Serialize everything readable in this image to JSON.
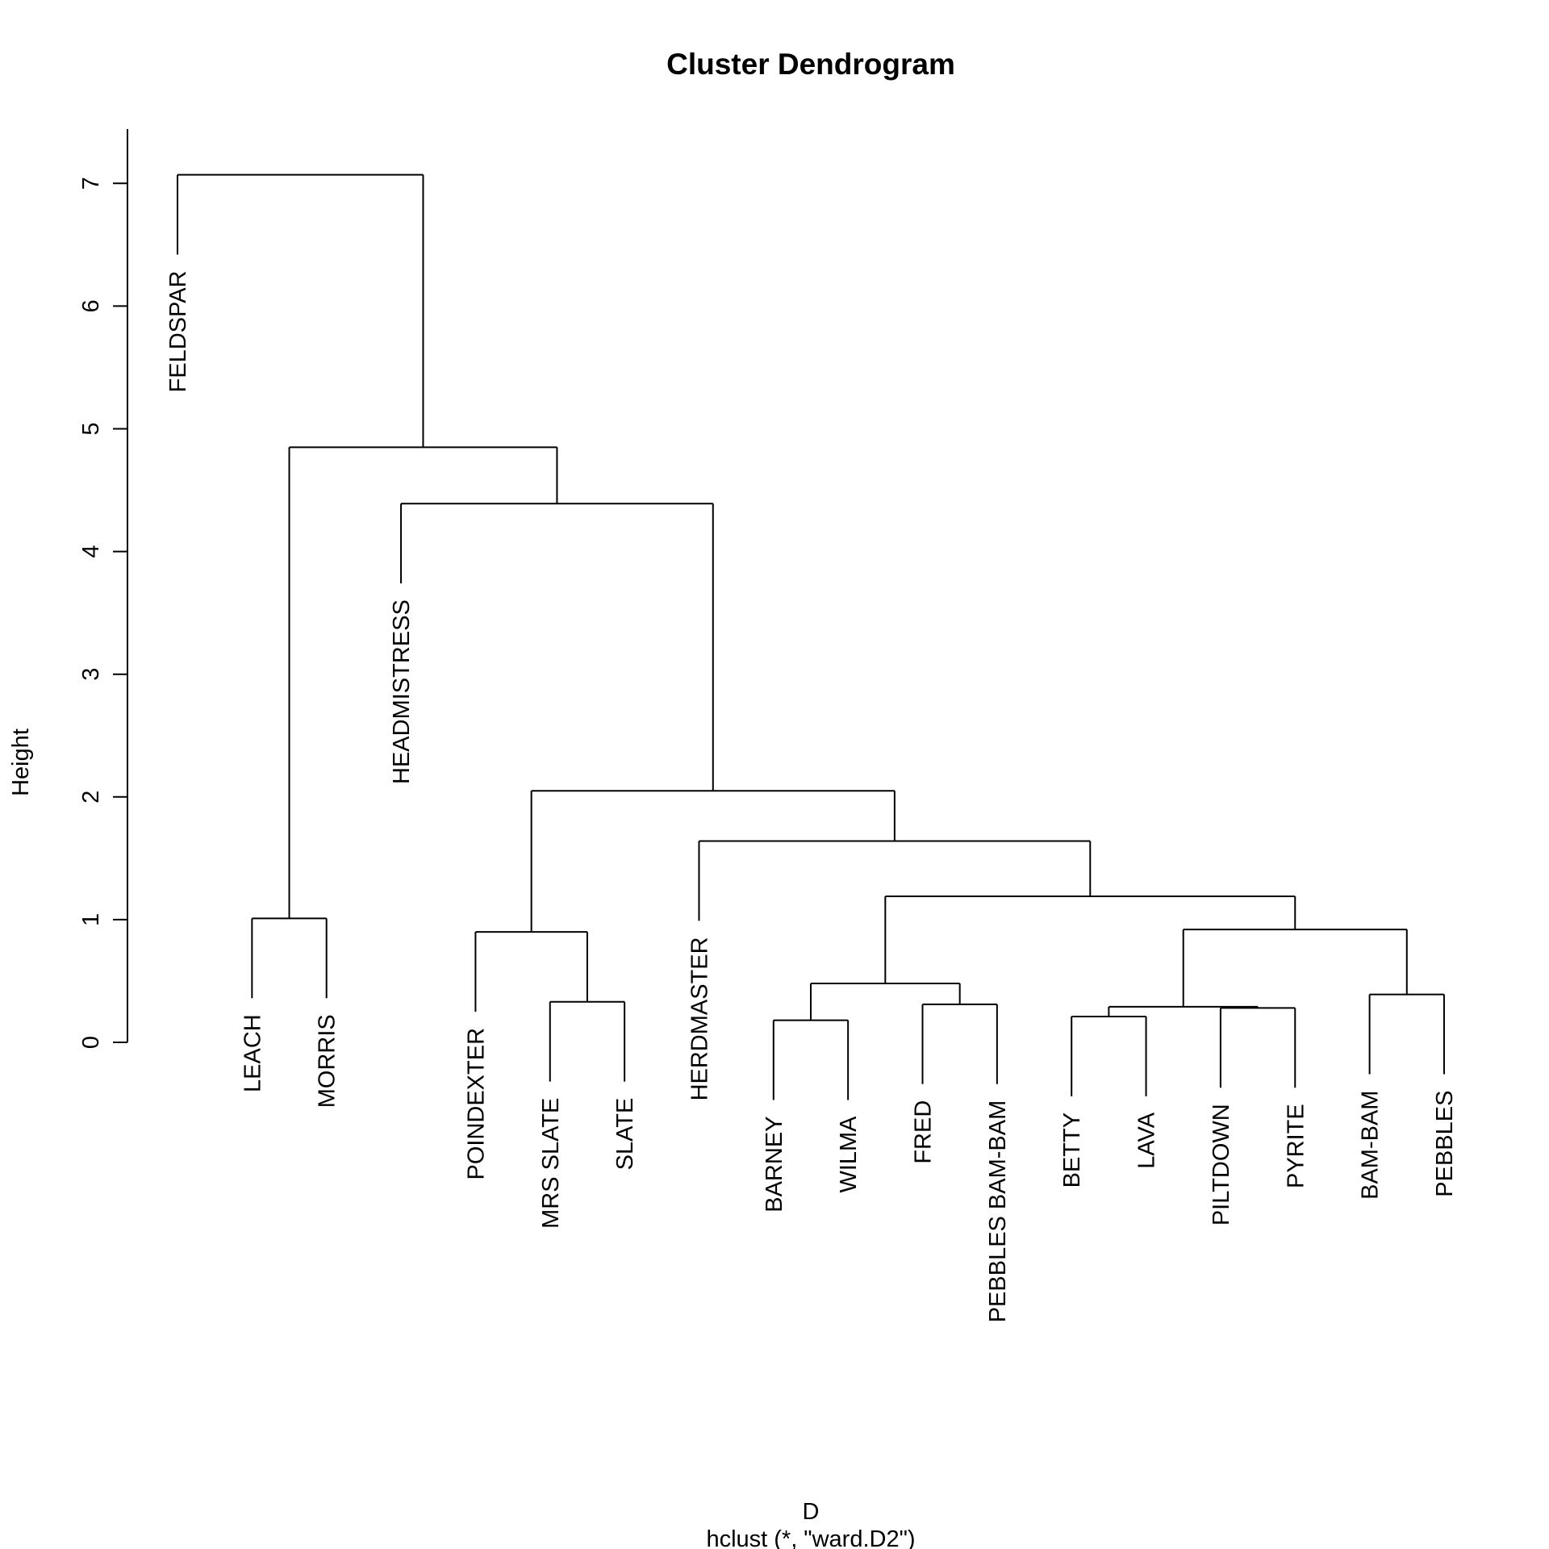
{
  "chart_data": {
    "type": "dendrogram",
    "title": "Cluster Dendrogram",
    "ylabel": "Height",
    "xlabel": "D",
    "sub": "hclust (*, \"ward.D2\")",
    "ylim": [
      0,
      7
    ],
    "yticks": [
      0,
      1,
      2,
      3,
      4,
      5,
      6,
      7
    ],
    "leaves": [
      "FELDSPAR",
      "LEACH",
      "MORRIS",
      "HEADMISTRESS",
      "POINDEXTER",
      "MRS SLATE",
      "SLATE",
      "HERDMASTER",
      "BARNEY",
      "WILMA",
      "FRED",
      "PEBBLES BAM-BAM",
      "BETTY",
      "LAVA",
      "PILTDOWN",
      "PYRITE",
      "BAM-BAM",
      "PEBBLES"
    ],
    "merges": [
      {
        "left": "BARNEY",
        "right": "WILMA",
        "height": 0.18
      },
      {
        "left": "BETTY",
        "right": "LAVA",
        "height": 0.21
      },
      {
        "left": "PILTDOWN",
        "right": "PYRITE",
        "height": 0.28
      },
      {
        "left": "BETTY+LAVA",
        "right": "PILTDOWN+PYRITE",
        "height": 0.29
      },
      {
        "left": "FRED",
        "right": "PEBBLES BAM-BAM",
        "height": 0.31
      },
      {
        "left": "MRS SLATE",
        "right": "SLATE",
        "height": 0.33
      },
      {
        "left": "BAM-BAM",
        "right": "PEBBLES",
        "height": 0.39
      },
      {
        "left": "BARNEY+WILMA",
        "right": "FRED+PEBBLES BAM-BAM",
        "height": 0.48
      },
      {
        "left": "POINDEXTER",
        "right": "MRS SLATE+SLATE",
        "height": 0.9
      },
      {
        "left": "BETTY+LAVA+PILTDOWN+PYRITE",
        "right": "BAM-BAM+PEBBLES",
        "height": 0.92
      },
      {
        "left": "LEACH",
        "right": "MORRIS",
        "height": 1.01
      },
      {
        "left": "BARNEY+WILMA+FRED+PEBBLES BAM-BAM",
        "right": "BETTY+LAVA+PILTDOWN+PYRITE+BAM-BAM+PEBBLES",
        "height": 1.19
      },
      {
        "left": "HERDMASTER",
        "right": "BARNEY..PEBBLES",
        "height": 1.64
      },
      {
        "left": "POINDEXTER+MRS SLATE+SLATE",
        "right": "HERDMASTER..PEBBLES",
        "height": 2.05
      },
      {
        "left": "HEADMISTRESS",
        "right": "POINDEXTER..PEBBLES",
        "height": 4.39
      },
      {
        "left": "LEACH+MORRIS",
        "right": "HEADMISTRESS..PEBBLES",
        "height": 4.85
      },
      {
        "left": "FELDSPAR",
        "right": "LEACH..PEBBLES",
        "height": 7.07
      }
    ]
  }
}
